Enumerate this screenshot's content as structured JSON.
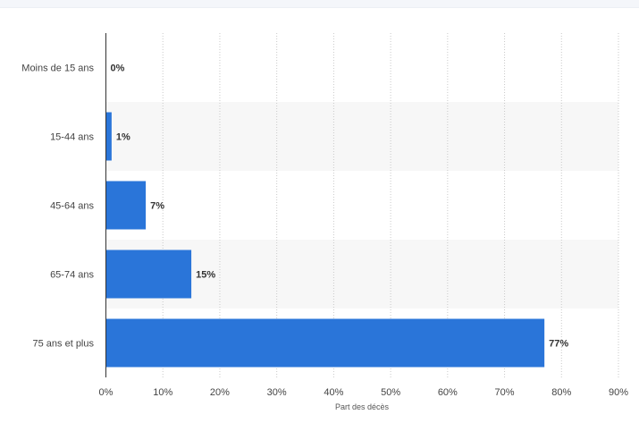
{
  "chart_data": {
    "type": "bar",
    "orientation": "horizontal",
    "categories": [
      "Moins de 15 ans",
      "15-44 ans",
      "45-64 ans",
      "65-74 ans",
      "75 ans et plus"
    ],
    "values": [
      0,
      1,
      7,
      15,
      77
    ],
    "value_labels": [
      "0%",
      "1%",
      "7%",
      "15%",
      "77%"
    ],
    "xlabel": "Part des décès",
    "xlim": [
      0,
      90
    ],
    "xticks": [
      0,
      10,
      20,
      30,
      40,
      50,
      60,
      70,
      80,
      90
    ],
    "xtick_labels": [
      "0%",
      "10%",
      "20%",
      "30%",
      "40%",
      "50%",
      "60%",
      "70%",
      "80%",
      "90%"
    ],
    "grid": true,
    "legend": "none",
    "bar_color": "#2a75d9",
    "band_color": "#f7f7f7"
  }
}
